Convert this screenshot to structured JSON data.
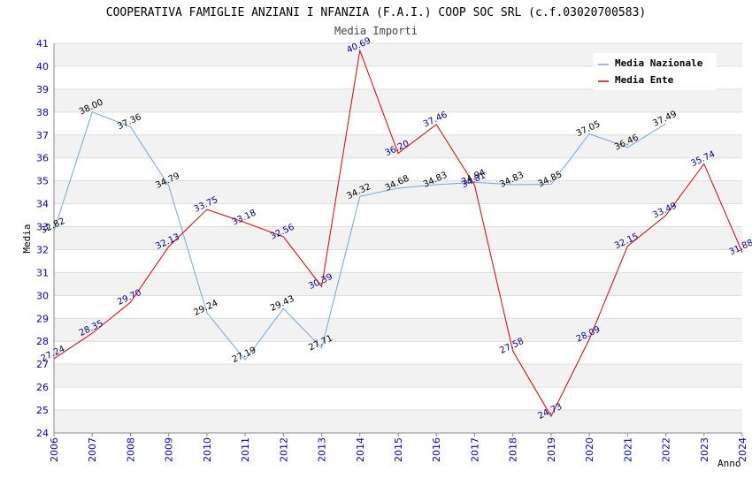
{
  "chart_data": {
    "type": "line",
    "title": "COOPERATIVA FAMIGLIE ANZIANI I NFANZIA (F.A.I.) COOP SOC SRL (c.f.03020700583)",
    "subtitle": "Media Importi",
    "xlabel": "Anno",
    "ylabel": "Media",
    "ylim": [
      24,
      41
    ],
    "grid": true,
    "legend_position": "top-right",
    "categories": [
      "2006",
      "2007",
      "2008",
      "2009",
      "2010",
      "2011",
      "2012",
      "2013",
      "2014",
      "2015",
      "2016",
      "2017",
      "2018",
      "2019",
      "2020",
      "2021",
      "2022",
      "2023",
      "2024"
    ],
    "y_ticks": [
      "24",
      "25",
      "26",
      "27",
      "28",
      "29",
      "30",
      "31",
      "32",
      "33",
      "34",
      "35",
      "36",
      "37",
      "38",
      "39",
      "40",
      "41"
    ],
    "series": [
      {
        "name": "Media Nazionale",
        "color": "#6fa8dc",
        "label_color": "#000000",
        "values": [
          32.82,
          38.0,
          37.36,
          34.79,
          29.24,
          27.19,
          29.43,
          27.71,
          34.32,
          34.68,
          34.83,
          34.94,
          34.83,
          34.85,
          37.05,
          36.46,
          37.49,
          null,
          null
        ],
        "labels": [
          "32.82",
          "38.00",
          "37.36",
          "34.79",
          "29.24",
          "27.19",
          "29.43",
          "27.71",
          "34.32",
          "34.68",
          "34.83",
          "34.94",
          "34.83",
          "34.85",
          "37.05",
          "36.46",
          "37.49",
          "",
          ""
        ]
      },
      {
        "name": "Media Ente",
        "color": "#dd0000",
        "label_color": "#00008b",
        "values": [
          27.24,
          28.35,
          29.7,
          32.13,
          33.75,
          33.18,
          32.56,
          30.39,
          40.69,
          36.2,
          37.46,
          34.81,
          27.58,
          24.73,
          28.09,
          32.15,
          33.49,
          35.74,
          31.88
        ],
        "labels": [
          "27.24",
          "28.35",
          "29.70",
          "32.13",
          "33.75",
          "33.18",
          "32.56",
          "30.39",
          "40.69",
          "36.20",
          "37.46",
          "34.81",
          "27.58",
          "24.73",
          "28.09",
          "32.15",
          "33.49",
          "35.74",
          "31.88"
        ]
      }
    ]
  }
}
